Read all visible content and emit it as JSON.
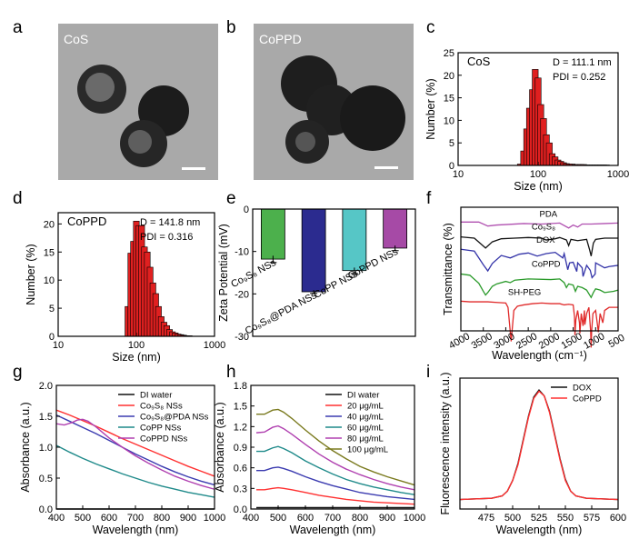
{
  "panel_labels": {
    "a": "a",
    "b": "b",
    "c": "c",
    "d": "d",
    "e": "e",
    "f": "f",
    "g": "g",
    "h": "h",
    "i": "i"
  },
  "images": {
    "a_label": "CoS",
    "b_label": "CoPPD",
    "tem_bg": "#a9a9a9",
    "particle": "#202020"
  },
  "chart_data": [
    {
      "id": "c",
      "type": "bar",
      "title": "CoS",
      "bar_color": "#e02020",
      "xlabel": "Size (nm)",
      "ylabel": "Number (%)",
      "xscale": "log",
      "xlim": [
        10,
        1000
      ],
      "ylim": [
        0,
        25
      ],
      "xticks": [
        "10",
        "100",
        "1000"
      ],
      "yticks": [
        "0",
        "5",
        "10",
        "15",
        "20",
        "25"
      ],
      "annotation1": "D = 111.1 nm",
      "annotation2": "PDI = 0.252",
      "x": [
        60,
        66,
        72,
        78,
        85,
        92,
        100,
        108,
        117,
        127,
        138,
        150,
        163,
        177,
        192,
        208,
        226,
        245,
        266,
        290,
        315,
        342,
        371,
        403,
        438,
        475,
        515,
        560,
        607,
        660,
        715
      ],
      "values": [
        0.3,
        3.2,
        8.1,
        12.7,
        16.8,
        21.3,
        19.4,
        13.5,
        10.4,
        6.8,
        5.0,
        2.6,
        1.9,
        1.2,
        0.9,
        0.6,
        0.4,
        0.3,
        0.3,
        0.2,
        0.2,
        0.2,
        0.2,
        0.1,
        0.1,
        0.1,
        0.1,
        0.1,
        0.1,
        0.1,
        0.1
      ]
    },
    {
      "id": "d",
      "type": "bar",
      "title": "CoPPD",
      "bar_color": "#e02020",
      "xlabel": "Size (nm)",
      "ylabel": "Number (%)",
      "xscale": "log",
      "xlim": [
        10,
        1000
      ],
      "ylim": [
        0,
        22
      ],
      "xticks": [
        "10",
        "100",
        "1000"
      ],
      "yticks": [
        "0",
        "5",
        "10",
        "15",
        "20"
      ],
      "annotation1": "D = 141.8 nm",
      "annotation2": "PDI = 0.316",
      "x": [
        78,
        85,
        92,
        100,
        108,
        117,
        127,
        138,
        150,
        163,
        177,
        192,
        208,
        226,
        245,
        266,
        290,
        315,
        342,
        371,
        403,
        438,
        475
      ],
      "values": [
        5.3,
        14.8,
        16.9,
        20.5,
        19.7,
        19.7,
        15.9,
        15.0,
        12.3,
        9.5,
        7.6,
        5.3,
        3.5,
        2.5,
        1.9,
        1.2,
        0.8,
        0.6,
        0.4,
        0.3,
        0.2,
        0.1,
        0.1
      ]
    },
    {
      "id": "e",
      "type": "bar",
      "ylabel": "Zeta Potential (mV)",
      "ylim": [
        -30,
        0
      ],
      "yticks": [
        "0",
        "-10",
        "-20",
        "-30"
      ],
      "categories": [
        "Co₉S₈ NSs",
        "Co₉S₈@PDA NSs",
        "CoPP NSs",
        "CoPPD NSs"
      ],
      "values": [
        -11.8,
        -19.5,
        -14.5,
        -9.2
      ],
      "errors": [
        0.8,
        0.4,
        0.7,
        0.6
      ],
      "colors": [
        "#4cb04c",
        "#2b2b8f",
        "#56c6c6",
        "#a64aa6"
      ]
    },
    {
      "id": "f",
      "type": "line",
      "xlabel": "Wavelength (cm⁻¹)",
      "ylabel": "Transmittance (%)",
      "xlim": [
        4000,
        500
      ],
      "xticks": [
        "4000",
        "3500",
        "3000",
        "2500",
        "2000",
        "1500",
        "1000",
        "500"
      ],
      "series": [
        {
          "name": "PDA",
          "color": "#b050b0",
          "offset": 88,
          "scale": 4,
          "x": [
            4000,
            3600,
            3400,
            3200,
            3000,
            2600,
            2200,
            1800,
            1600,
            1500,
            1400,
            1300,
            1100,
            800,
            500
          ],
          "y": [
            0,
            0,
            -0.8,
            -0.6,
            -0.5,
            -0.3,
            -0.4,
            -0.2,
            -1.2,
            -0.6,
            -1.0,
            -0.4,
            -0.4,
            -0.3,
            -0.2
          ]
        },
        {
          "name": "Co₉S₈",
          "color": "#111111",
          "offset": 76,
          "scale": 5,
          "x": [
            4000,
            3700,
            3450,
            3300,
            3100,
            2800,
            2500,
            2200,
            2100,
            1900,
            1800,
            1650,
            1600,
            1550,
            1400,
            1200,
            1130,
            1100,
            1050,
            1000,
            800,
            500
          ],
          "y": [
            0,
            -0.2,
            -1.8,
            -0.8,
            -0.3,
            -0.2,
            -0.1,
            -0.2,
            -0.5,
            -0.3,
            -0.1,
            -0.5,
            -1.4,
            -0.4,
            -0.6,
            -0.4,
            -2.2,
            -3.1,
            -1.0,
            -0.4,
            -0.2,
            -0.2
          ]
        },
        {
          "name": "DOX",
          "color": "#3333a8",
          "offset": 66,
          "scale": 5,
          "x": [
            4000,
            3700,
            3500,
            3400,
            3300,
            3100,
            2900,
            2700,
            2500,
            2300,
            2100,
            1900,
            1730,
            1700,
            1620,
            1580,
            1500,
            1420,
            1400,
            1300,
            1280,
            1200,
            1120,
            1080,
            1010,
            1000,
            900,
            800,
            700,
            500
          ],
          "y": [
            0,
            -0.3,
            -2.5,
            -3.5,
            -2.3,
            -1.0,
            -1.4,
            -0.8,
            -0.6,
            -1.1,
            -0.7,
            -0.5,
            -1.4,
            -0.7,
            -3.3,
            -2.2,
            -2.1,
            -3.6,
            -2.2,
            -3.0,
            -4.4,
            -2.6,
            -3.4,
            -4.6,
            -4.0,
            -2.2,
            -2.6,
            -3.0,
            -2.8,
            -2.6
          ]
        },
        {
          "name": "CoPPD",
          "color": "#2a9a2a",
          "offset": 46,
          "scale": 5,
          "x": [
            4000,
            3800,
            3600,
            3500,
            3450,
            3400,
            3300,
            3200,
            3000,
            2900,
            2800,
            2500,
            2000,
            1800,
            1700,
            1650,
            1600,
            1500,
            1450,
            1400,
            1300,
            1200,
            1100,
            1050,
            1000,
            900,
            800,
            600,
            500
          ],
          "y": [
            0,
            -0.2,
            -1.5,
            -2.8,
            -3.4,
            -3.0,
            -2.0,
            -1.6,
            -1.2,
            -1.4,
            -1.0,
            -0.8,
            -0.9,
            -0.8,
            -1.4,
            -2.2,
            -1.6,
            -1.8,
            -2.8,
            -2.0,
            -2.2,
            -2.6,
            -3.8,
            -3.0,
            -2.4,
            -2.6,
            -3.0,
            -2.8,
            -2.6
          ]
        },
        {
          "name": "SH-PEG",
          "color": "#e02a2a",
          "offset": 24,
          "scale": 5,
          "x": [
            4000,
            3800,
            3600,
            3400,
            3200,
            3000,
            2950,
            2880,
            2820,
            2740,
            2600,
            2400,
            2200,
            2000,
            1800,
            1700,
            1600,
            1500,
            1470,
            1460,
            1440,
            1400,
            1360,
            1350,
            1320,
            1280,
            1250,
            1240,
            1200,
            1150,
            1110,
            1100,
            1090,
            1060,
            1000,
            960,
            940,
            900,
            840,
            800,
            700,
            600,
            500
          ],
          "y": [
            0,
            -0.1,
            -0.1,
            -0.1,
            -0.2,
            -0.3,
            -1.0,
            -6.5,
            -1.5,
            -0.8,
            -0.6,
            -0.4,
            -0.3,
            -0.4,
            -0.4,
            -0.6,
            -0.5,
            -0.6,
            -2.5,
            -5.5,
            -3.0,
            -1.5,
            -3.5,
            -5.2,
            -2.0,
            -4.0,
            -1.5,
            -3.8,
            -2.0,
            -1.0,
            -5.0,
            -7.5,
            -5.0,
            -2.0,
            -1.5,
            -3.8,
            -5.0,
            -2.0,
            -3.5,
            -1.5,
            -1.0,
            -1.0,
            -1.0
          ]
        }
      ]
    },
    {
      "id": "g",
      "type": "line",
      "xlabel": "Wavelength (nm)",
      "ylabel": "Absorbance (a.u.)",
      "xlim": [
        400,
        1000
      ],
      "ylim": [
        0,
        2
      ],
      "xticks": [
        "400",
        "500",
        "600",
        "700",
        "800",
        "900",
        "1000"
      ],
      "yticks": [
        "0.0",
        "0.5",
        "1.0",
        "1.5",
        "2.0"
      ],
      "series": [
        {
          "name": "DI water",
          "color": "#111111",
          "x": [
            400,
            1000
          ],
          "y": [
            0,
            0
          ]
        },
        {
          "name": "Co₉S₈ NSs",
          "color": "#ff3030",
          "x": [
            400,
            450,
            500,
            550,
            600,
            650,
            700,
            750,
            800,
            850,
            900,
            950,
            1000
          ],
          "y": [
            1.6,
            1.52,
            1.43,
            1.34,
            1.24,
            1.14,
            1.05,
            0.96,
            0.87,
            0.78,
            0.69,
            0.61,
            0.53
          ]
        },
        {
          "name": "Co₉S₈@PDA NSs",
          "color": "#3b3bb0",
          "x": [
            400,
            450,
            500,
            550,
            600,
            650,
            700,
            750,
            800,
            850,
            900,
            950,
            1000
          ],
          "y": [
            1.52,
            1.42,
            1.32,
            1.22,
            1.11,
            1.0,
            0.89,
            0.79,
            0.69,
            0.6,
            0.52,
            0.45,
            0.39
          ]
        },
        {
          "name": "CoPP NSs",
          "color": "#1f8a8a",
          "x": [
            400,
            450,
            500,
            550,
            600,
            650,
            700,
            750,
            800,
            850,
            900,
            950,
            1000
          ],
          "y": [
            1.03,
            0.92,
            0.82,
            0.73,
            0.65,
            0.57,
            0.5,
            0.43,
            0.37,
            0.32,
            0.27,
            0.23,
            0.19
          ]
        },
        {
          "name": "CoPPD NSs",
          "color": "#b040b0",
          "x": [
            400,
            430,
            460,
            480,
            500,
            520,
            550,
            600,
            650,
            700,
            750,
            800,
            850,
            900,
            950,
            1000
          ],
          "y": [
            1.38,
            1.36,
            1.4,
            1.44,
            1.45,
            1.42,
            1.33,
            1.15,
            1.0,
            0.86,
            0.74,
            0.63,
            0.53,
            0.45,
            0.38,
            0.32
          ]
        }
      ]
    },
    {
      "id": "h",
      "type": "line",
      "xlabel": "Wavelength (nm)",
      "ylabel": "Absorbance (a.u.)",
      "xlim": [
        400,
        1000
      ],
      "ylim": [
        0,
        1.8
      ],
      "xticks": [
        "400",
        "500",
        "600",
        "700",
        "800",
        "900",
        "1000"
      ],
      "yticks": [
        "0.0",
        "0.3",
        "0.6",
        "0.9",
        "1.2",
        "1.5",
        "1.8"
      ],
      "series": [
        {
          "name": "DI water",
          "color": "#111111",
          "x": [
            420,
            1000
          ],
          "y": [
            0.02,
            0.02
          ]
        },
        {
          "name": "20 μg/mL",
          "color": "#ff3030",
          "x": [
            420,
            450,
            480,
            500,
            520,
            550,
            600,
            650,
            700,
            750,
            800,
            850,
            900,
            950,
            1000
          ],
          "y": [
            0.28,
            0.28,
            0.3,
            0.31,
            0.3,
            0.28,
            0.24,
            0.2,
            0.17,
            0.14,
            0.12,
            0.1,
            0.09,
            0.08,
            0.07
          ]
        },
        {
          "name": "40 μg/mL",
          "color": "#3b3bb0",
          "x": [
            420,
            450,
            480,
            500,
            520,
            550,
            600,
            650,
            700,
            750,
            800,
            850,
            900,
            950,
            1000
          ],
          "y": [
            0.56,
            0.56,
            0.6,
            0.61,
            0.59,
            0.55,
            0.47,
            0.4,
            0.34,
            0.29,
            0.24,
            0.21,
            0.18,
            0.16,
            0.14
          ]
        },
        {
          "name": "60 μg/mL",
          "color": "#1f8a8a",
          "x": [
            420,
            450,
            480,
            500,
            520,
            550,
            600,
            650,
            700,
            750,
            800,
            850,
            900,
            950,
            1000
          ],
          "y": [
            0.84,
            0.84,
            0.89,
            0.91,
            0.88,
            0.82,
            0.7,
            0.6,
            0.51,
            0.43,
            0.37,
            0.32,
            0.28,
            0.24,
            0.21
          ]
        },
        {
          "name": "80 μg/mL",
          "color": "#b040b0",
          "x": [
            420,
            450,
            480,
            500,
            520,
            550,
            600,
            650,
            700,
            750,
            800,
            850,
            900,
            950,
            1000
          ],
          "y": [
            1.11,
            1.12,
            1.19,
            1.21,
            1.17,
            1.09,
            0.94,
            0.8,
            0.68,
            0.58,
            0.5,
            0.43,
            0.37,
            0.32,
            0.28
          ]
        },
        {
          "name": "100 μg/mL",
          "color": "#7a7a1e",
          "x": [
            420,
            450,
            480,
            500,
            520,
            550,
            600,
            650,
            700,
            750,
            800,
            850,
            900,
            950,
            1000
          ],
          "y": [
            1.38,
            1.38,
            1.44,
            1.45,
            1.41,
            1.32,
            1.15,
            0.99,
            0.85,
            0.73,
            0.62,
            0.54,
            0.47,
            0.41,
            0.35
          ]
        }
      ]
    },
    {
      "id": "i",
      "type": "line",
      "xlabel": "Wavelength (nm)",
      "ylabel": "Fluorescence intensity (a.u.)",
      "xlim": [
        450,
        600
      ],
      "ylim": [
        0,
        1.1
      ],
      "xticks": [
        "475",
        "500",
        "525",
        "550",
        "575",
        "600"
      ],
      "series": [
        {
          "name": "DOX",
          "color": "#111111",
          "x": [
            450,
            480,
            490,
            495,
            500,
            505,
            510,
            515,
            520,
            525,
            530,
            535,
            540,
            545,
            550,
            555,
            560,
            570,
            600
          ],
          "y": [
            0.08,
            0.09,
            0.11,
            0.15,
            0.24,
            0.38,
            0.58,
            0.78,
            0.94,
            1.0,
            0.95,
            0.82,
            0.62,
            0.42,
            0.25,
            0.15,
            0.11,
            0.09,
            0.08
          ]
        },
        {
          "name": "CoPPD",
          "color": "#ff3030",
          "x": [
            450,
            480,
            490,
            495,
            500,
            505,
            510,
            515,
            520,
            525,
            530,
            535,
            540,
            545,
            550,
            555,
            560,
            570,
            600
          ],
          "y": [
            0.08,
            0.09,
            0.11,
            0.15,
            0.24,
            0.37,
            0.57,
            0.77,
            0.93,
            0.99,
            0.95,
            0.81,
            0.61,
            0.41,
            0.24,
            0.15,
            0.11,
            0.09,
            0.08
          ]
        }
      ]
    }
  ]
}
